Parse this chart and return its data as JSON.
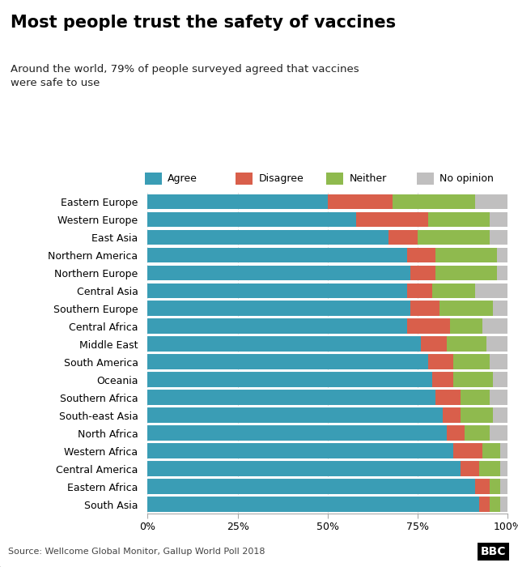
{
  "title": "Most people trust the safety of vaccines",
  "subtitle": "Around the world, 79% of people surveyed agreed that vaccines\nwere safe to use",
  "source": "Source: Wellcome Global Monitor, Gallup World Poll 2018",
  "legend_labels": [
    "Agree",
    "Disagree",
    "Neither",
    "No opinion"
  ],
  "colors": [
    "#3a9db5",
    "#d95f4b",
    "#8fba4e",
    "#c0bfbf"
  ],
  "regions": [
    "Eastern Europe",
    "Western Europe",
    "East Asia",
    "Northern America",
    "Northern Europe",
    "Central Asia",
    "Southern Europe",
    "Central Africa",
    "Middle East",
    "South America",
    "Oceania",
    "Southern Africa",
    "South-east Asia",
    "North Africa",
    "Western Africa",
    "Central America",
    "Eastern Africa",
    "South Asia"
  ],
  "agree": [
    50,
    58,
    67,
    72,
    73,
    72,
    73,
    72,
    76,
    78,
    79,
    80,
    82,
    83,
    85,
    87,
    91,
    92
  ],
  "disagree": [
    18,
    20,
    8,
    8,
    7,
    7,
    8,
    12,
    7,
    7,
    6,
    7,
    5,
    5,
    8,
    5,
    4,
    3
  ],
  "neither": [
    23,
    17,
    20,
    17,
    17,
    12,
    15,
    9,
    11,
    10,
    11,
    8,
    9,
    7,
    5,
    6,
    3,
    3
  ],
  "no_opinion": [
    9,
    5,
    5,
    3,
    3,
    9,
    4,
    7,
    6,
    5,
    4,
    5,
    4,
    5,
    2,
    2,
    2,
    2
  ],
  "background_color": "#ffffff",
  "footer_color": "#f0f0f0",
  "grid_color": "#e0e0e0",
  "bar_height": 0.85
}
